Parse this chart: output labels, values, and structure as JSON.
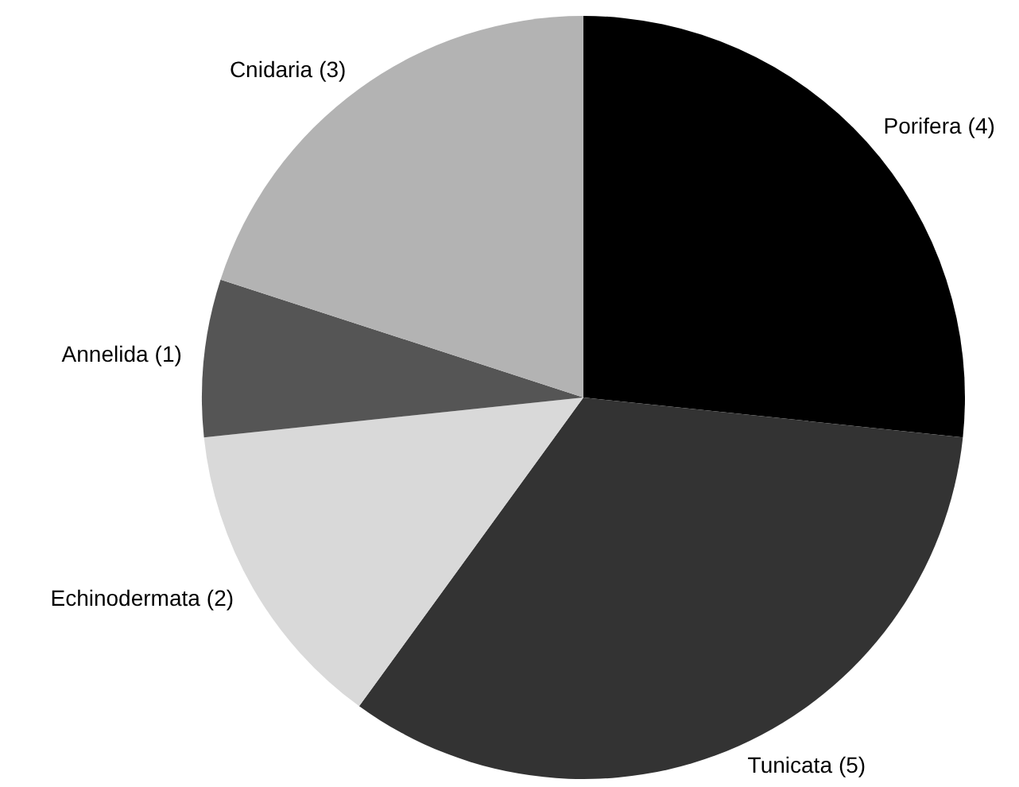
{
  "chart_data": {
    "type": "pie",
    "categories": [
      "Porifera",
      "Tunicata",
      "Echinodermata",
      "Annelida",
      "Cnidaria"
    ],
    "values": [
      4,
      5,
      2,
      1,
      3
    ],
    "value_labels": [
      "(4)",
      "(5)",
      "(2)",
      "(1)",
      "(3)"
    ],
    "colors": [
      "#000000",
      "#333333",
      "#d9d9d9",
      "#555555",
      "#b3b3b3"
    ]
  }
}
